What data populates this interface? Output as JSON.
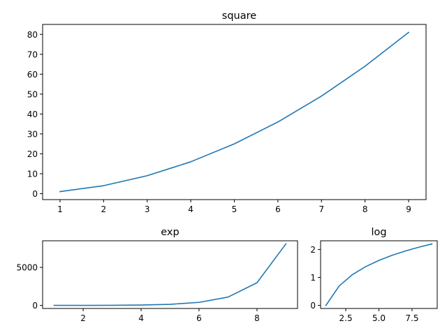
{
  "chart_data": [
    {
      "type": "line",
      "title": "square",
      "xlabel": "",
      "ylabel": "",
      "x": [
        1,
        2,
        3,
        4,
        5,
        6,
        7,
        8,
        9
      ],
      "series": [
        {
          "values": [
            1,
            4,
            9,
            16,
            25,
            36,
            49,
            64,
            81
          ]
        }
      ],
      "xlim": [
        0.6,
        9.4
      ],
      "ylim": [
        -3,
        85
      ],
      "xticks": [
        1,
        2,
        3,
        4,
        5,
        6,
        7,
        8,
        9
      ],
      "xtick_labels": [
        "1",
        "2",
        "3",
        "4",
        "5",
        "6",
        "7",
        "8",
        "9"
      ],
      "yticks": [
        0,
        10,
        20,
        30,
        40,
        50,
        60,
        70,
        80
      ],
      "ytick_labels": [
        "0",
        "10",
        "20",
        "30",
        "40",
        "50",
        "60",
        "70",
        "80"
      ],
      "grid": false,
      "color": "#1f77b4"
    },
    {
      "type": "line",
      "title": "exp",
      "xlabel": "",
      "ylabel": "",
      "x": [
        1,
        2,
        3,
        4,
        5,
        6,
        7,
        8,
        9
      ],
      "series": [
        {
          "values": [
            2.72,
            7.39,
            20.09,
            54.6,
            148.41,
            403.43,
            1096.63,
            2980.96,
            8103.08
          ]
        }
      ],
      "xlim": [
        0.6,
        9.4
      ],
      "ylim": [
        -400,
        8500
      ],
      "xticks": [
        2,
        4,
        6,
        8
      ],
      "xtick_labels": [
        "2",
        "4",
        "6",
        "8"
      ],
      "yticks": [
        0,
        5000
      ],
      "ytick_labels": [
        "0",
        "5000"
      ],
      "grid": false,
      "color": "#1f77b4"
    },
    {
      "type": "line",
      "title": "log",
      "xlabel": "",
      "ylabel": "",
      "x": [
        1,
        2,
        3,
        4,
        5,
        6,
        7,
        8,
        9
      ],
      "series": [
        {
          "values": [
            0,
            0.693,
            1.099,
            1.386,
            1.609,
            1.792,
            1.946,
            2.079,
            2.197
          ]
        }
      ],
      "xlim": [
        0.6,
        9.4
      ],
      "ylim": [
        -0.11,
        2.31
      ],
      "xticks": [
        2.5,
        5.0,
        7.5
      ],
      "xtick_labels": [
        "2.5",
        "5.0",
        "7.5"
      ],
      "yticks": [
        0,
        1,
        2
      ],
      "ytick_labels": [
        "0",
        "1",
        "2"
      ],
      "grid": false,
      "color": "#1f77b4"
    }
  ]
}
